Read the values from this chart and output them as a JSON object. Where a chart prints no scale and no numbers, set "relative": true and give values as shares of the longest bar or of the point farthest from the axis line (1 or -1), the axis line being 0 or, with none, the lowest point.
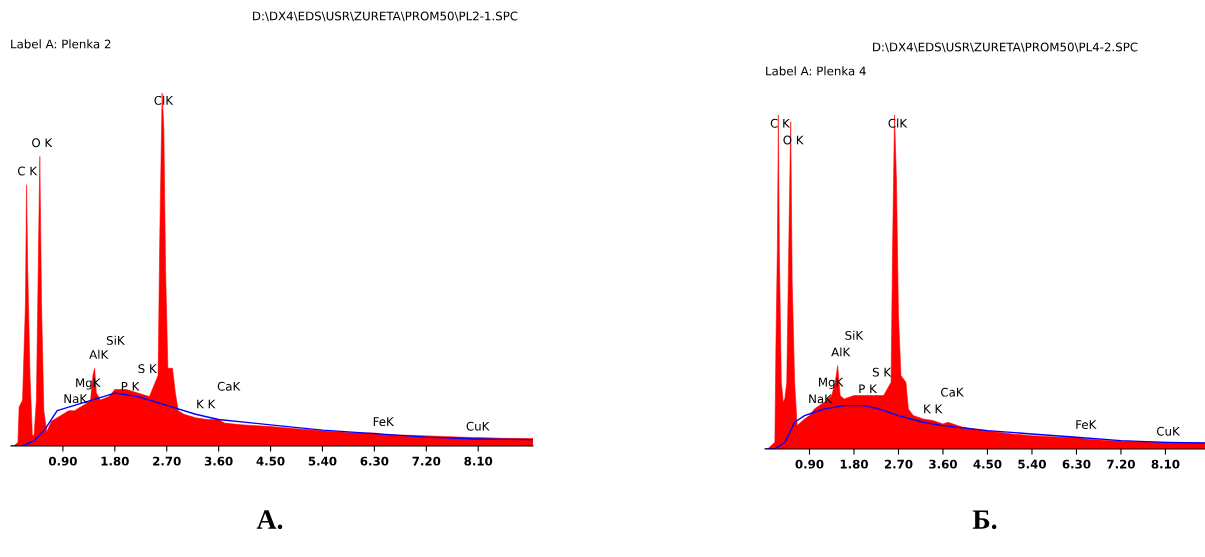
{
  "chart_data": [
    {
      "type": "area",
      "title": "D:\\DX4\\EDS\\USR\\ZURETA\\PROM50\\PL2-1.SPC",
      "subtitle": "Label A: Plenka 2",
      "relative": true,
      "xlim": [
        0,
        9.05
      ],
      "xticks": [
        {
          "value": 0.9,
          "label": "0.90"
        },
        {
          "value": 1.8,
          "label": "1.80"
        },
        {
          "value": 2.7,
          "label": "2.70"
        },
        {
          "value": 3.6,
          "label": "3.60"
        },
        {
          "value": 4.5,
          "label": "4.50"
        },
        {
          "value": 5.4,
          "label": "5.40"
        },
        {
          "value": 6.3,
          "label": "6.30"
        },
        {
          "value": 7.2,
          "label": "7.20"
        },
        {
          "value": 8.1,
          "label": "8.10"
        }
      ],
      "grid": false,
      "legend": false,
      "series": [
        {
          "color": "#ff0000",
          "x": [
            0.05,
            0.12,
            0.14,
            0.2,
            0.25,
            0.27,
            0.29,
            0.33,
            0.37,
            0.4,
            0.44,
            0.48,
            0.5,
            0.53,
            0.57,
            0.62,
            0.7,
            0.8,
            0.9,
            1.0,
            1.1,
            1.2,
            1.3,
            1.38,
            1.42,
            1.45,
            1.48,
            1.55,
            1.7,
            1.8,
            2.0,
            2.2,
            2.4,
            2.55,
            2.58,
            2.62,
            2.65,
            2.68,
            2.72,
            2.8,
            2.85,
            2.9,
            3.0,
            3.2,
            3.4,
            3.6,
            3.7,
            4.0,
            4.5,
            5.0,
            5.5,
            6.0,
            6.3,
            6.5,
            7.0,
            7.5,
            8.0,
            8.1,
            8.5,
            9.05
          ],
          "values": [
            0,
            0.01,
            0.11,
            0.13,
            0.4,
            0.74,
            0.5,
            0.2,
            0.03,
            0.03,
            0.13,
            0.6,
            0.82,
            0.4,
            0.1,
            0.04,
            0.07,
            0.08,
            0.09,
            0.1,
            0.1,
            0.11,
            0.12,
            0.13,
            0.2,
            0.22,
            0.15,
            0.13,
            0.14,
            0.16,
            0.16,
            0.15,
            0.14,
            0.2,
            0.6,
            1.0,
            0.9,
            0.5,
            0.22,
            0.22,
            0.15,
            0.1,
            0.09,
            0.08,
            0.075,
            0.075,
            0.065,
            0.06,
            0.055,
            0.048,
            0.042,
            0.037,
            0.037,
            0.032,
            0.03,
            0.027,
            0.024,
            0.024,
            0.022,
            0.021
          ]
        },
        {
          "type": "line",
          "color": "#0000ff",
          "x": [
            0,
            0.2,
            0.4,
            0.6,
            0.8,
            1.0,
            1.4,
            1.8,
            2.2,
            2.7,
            3.2,
            3.6,
            4.5,
            5.4,
            6.3,
            7.2,
            8.1,
            9.05
          ],
          "values": [
            0,
            0,
            0.015,
            0.05,
            0.1,
            0.11,
            0.13,
            0.15,
            0.14,
            0.115,
            0.09,
            0.075,
            0.06,
            0.045,
            0.035,
            0.025,
            0.02,
            0.018
          ]
        }
      ],
      "annotations": [
        "C K",
        "O K",
        "ClK",
        "NaK",
        "MgK",
        "AlK",
        "SiK",
        "P K",
        "S K",
        "K K",
        "CaK",
        "FeK",
        "CuK",
        "А."
      ]
    },
    {
      "type": "area",
      "title": "D:\\DX4\\EDS\\USR\\ZURETA\\PROM50\\PL4-2.SPC",
      "subtitle": "Label A: Plenka 4",
      "relative": true,
      "xlim": [
        0,
        8.9
      ],
      "xticks": [
        {
          "value": 0.9,
          "label": "0.90"
        },
        {
          "value": 1.8,
          "label": "1.80"
        },
        {
          "value": 2.7,
          "label": "2.70"
        },
        {
          "value": 3.6,
          "label": "3.60"
        },
        {
          "value": 4.5,
          "label": "4.50"
        },
        {
          "value": 5.4,
          "label": "5.40"
        },
        {
          "value": 6.3,
          "label": "6.30"
        },
        {
          "value": 7.2,
          "label": "7.20"
        },
        {
          "value": 8.1,
          "label": "8.10"
        }
      ],
      "grid": false,
      "legend": false,
      "series": [
        {
          "color": "#ff0000",
          "x": [
            0.05,
            0.2,
            0.22,
            0.25,
            0.27,
            0.29,
            0.33,
            0.37,
            0.4,
            0.44,
            0.48,
            0.52,
            0.55,
            0.6,
            0.65,
            0.8,
            0.9,
            1.0,
            1.1,
            1.2,
            1.35,
            1.42,
            1.47,
            1.52,
            1.6,
            1.8,
            2.0,
            2.2,
            2.4,
            2.55,
            2.58,
            2.62,
            2.66,
            2.7,
            2.75,
            2.85,
            2.9,
            3.0,
            3.2,
            3.4,
            3.6,
            3.7,
            4.0,
            4.5,
            5.0,
            5.4,
            6.0,
            6.3,
            6.5,
            7.0,
            7.5,
            8.1,
            8.9
          ],
          "values": [
            0,
            0.02,
            0.3,
            0.6,
            1.0,
            0.6,
            0.2,
            0.14,
            0.15,
            0.2,
            0.6,
            0.98,
            0.5,
            0.2,
            0.07,
            0.09,
            0.1,
            0.12,
            0.13,
            0.14,
            0.16,
            0.2,
            0.25,
            0.16,
            0.15,
            0.16,
            0.16,
            0.16,
            0.16,
            0.2,
            0.6,
            1.0,
            0.8,
            0.4,
            0.22,
            0.2,
            0.12,
            0.1,
            0.09,
            0.085,
            0.075,
            0.08,
            0.065,
            0.055,
            0.045,
            0.04,
            0.035,
            0.035,
            0.03,
            0.025,
            0.022,
            0.02,
            0.018
          ]
        },
        {
          "type": "line",
          "color": "#0000ff",
          "x": [
            0,
            0.2,
            0.4,
            0.6,
            0.8,
            1.0,
            1.2,
            1.6,
            2.0,
            2.3,
            2.7,
            3.2,
            3.6,
            4.5,
            5.4,
            6.3,
            7.2,
            8.1,
            8.9
          ],
          "values": [
            0,
            0,
            0.02,
            0.08,
            0.1,
            0.11,
            0.12,
            0.13,
            0.13,
            0.12,
            0.1,
            0.08,
            0.07,
            0.055,
            0.045,
            0.035,
            0.025,
            0.02,
            0.018
          ]
        }
      ],
      "annotations": [
        "C K",
        "O K",
        "ClK",
        "NaK",
        "MgK",
        "AlK",
        "SiK",
        "P K",
        "S K",
        "K K",
        "CaK",
        "FeK",
        "CuK",
        "Б."
      ]
    }
  ]
}
